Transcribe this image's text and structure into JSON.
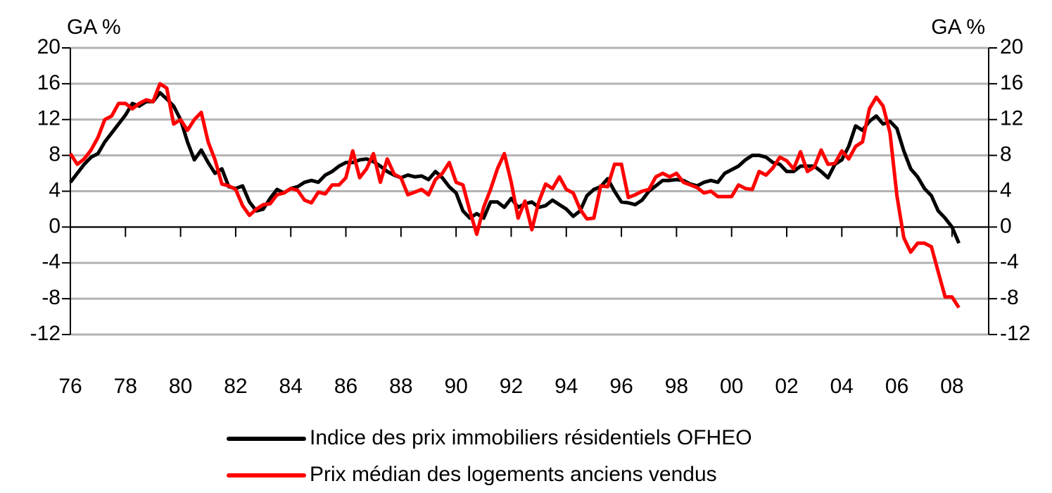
{
  "chart_data": {
    "type": "line",
    "y_label": "GA %",
    "y2_label": "GA %",
    "x": [
      1976,
      1976.25,
      1976.5,
      1976.75,
      1977,
      1977.25,
      1977.5,
      1977.75,
      1978,
      1978.25,
      1978.5,
      1978.75,
      1979,
      1979.25,
      1979.5,
      1979.75,
      1980,
      1980.25,
      1980.5,
      1980.75,
      1981,
      1981.25,
      1981.5,
      1981.75,
      1982,
      1982.25,
      1982.5,
      1982.75,
      1983,
      1983.25,
      1983.5,
      1983.75,
      1984,
      1984.25,
      1984.5,
      1984.75,
      1985,
      1985.25,
      1985.5,
      1985.75,
      1986,
      1986.25,
      1986.5,
      1986.75,
      1987,
      1987.25,
      1987.5,
      1987.75,
      1988,
      1988.25,
      1988.5,
      1988.75,
      1989,
      1989.25,
      1989.5,
      1989.75,
      1990,
      1990.25,
      1990.5,
      1990.75,
      1991,
      1991.25,
      1991.5,
      1991.75,
      1992,
      1992.25,
      1992.5,
      1992.75,
      1993,
      1993.25,
      1993.5,
      1993.75,
      1994,
      1994.25,
      1994.5,
      1994.75,
      1995,
      1995.25,
      1995.5,
      1995.75,
      1996,
      1996.25,
      1996.5,
      1996.75,
      1997,
      1997.25,
      1997.5,
      1997.75,
      1998,
      1998.25,
      1998.5,
      1998.75,
      1999,
      1999.25,
      1999.5,
      1999.75,
      2000,
      2000.25,
      2000.5,
      2000.75,
      2001,
      2001.25,
      2001.5,
      2001.75,
      2002,
      2002.25,
      2002.5,
      2002.75,
      2003,
      2003.25,
      2003.5,
      2003.75,
      2004,
      2004.25,
      2004.5,
      2004.75,
      2005,
      2005.25,
      2005.5,
      2005.75,
      2006,
      2006.25,
      2006.5,
      2006.75,
      2007,
      2007.25,
      2007.5,
      2007.75,
      2008,
      2008.25
    ],
    "series": [
      {
        "name": "Indice des prix immobiliers résidentiels OFHEO",
        "color": "#000000",
        "values": [
          5,
          6,
          7,
          7.8,
          8.2,
          9.5,
          10.5,
          11.5,
          12.5,
          13.8,
          13.5,
          14,
          14,
          15,
          14.3,
          13.5,
          12,
          9.5,
          7.5,
          8.6,
          7.2,
          6,
          6.5,
          4.5,
          4.3,
          4.6,
          2.8,
          1.8,
          2,
          3.2,
          4.2,
          3.8,
          4.3,
          4.5,
          5,
          5.2,
          5,
          5.8,
          6.2,
          6.8,
          7.2,
          7.2,
          7.5,
          7.6,
          7.3,
          6.8,
          6.2,
          5.8,
          5.5,
          5.8,
          5.6,
          5.7,
          5.3,
          6.2,
          5.5,
          4.5,
          3.8,
          1.8,
          1,
          1.5,
          1,
          2.8,
          2.8,
          2.2,
          3.2,
          2.2,
          2.6,
          2.8,
          2.2,
          2.4,
          3,
          2.5,
          2,
          1.2,
          1.8,
          3.5,
          4.2,
          4.5,
          5.4,
          4,
          2.8,
          2.7,
          2.5,
          3,
          4,
          4.6,
          5.2,
          5.2,
          5.3,
          5.2,
          4.8,
          4.6,
          5,
          5.2,
          5,
          6,
          6.4,
          6.8,
          7.5,
          8,
          8,
          7.8,
          7.2,
          7,
          6.2,
          6.2,
          6.8,
          6.8,
          6.8,
          6.2,
          5.5,
          7,
          7.5,
          9,
          11.3,
          10.8,
          11.8,
          12.4,
          11.5,
          11.8,
          11,
          8.5,
          6.5,
          5.6,
          4.3,
          3.5,
          1.8,
          1,
          0,
          -1.8
        ]
      },
      {
        "name": "Prix médian des logements anciens vendus",
        "color": "#ff0000",
        "values": [
          8.2,
          7,
          7.6,
          8.6,
          10,
          12,
          12.4,
          13.8,
          13.8,
          13.2,
          13.8,
          14.2,
          14,
          16,
          15.5,
          11.5,
          12,
          10.8,
          12,
          12.8,
          9.5,
          7.5,
          4.8,
          4.6,
          4.2,
          2.4,
          1.3,
          2,
          2.5,
          2.6,
          3.6,
          3.8,
          4.3,
          4.1,
          3,
          2.7,
          3.9,
          3.7,
          4.7,
          4.7,
          5.5,
          8.5,
          5.5,
          6.5,
          8.2,
          5,
          7.6,
          5.9,
          5.5,
          3.6,
          3.9,
          4.2,
          3.6,
          5.3,
          6,
          7.2,
          5,
          4.7,
          1.8,
          -0.8,
          2.2,
          4.2,
          6.5,
          8.2,
          5,
          1,
          2.9,
          -0.3,
          2.8,
          4.8,
          4.3,
          5.6,
          4.2,
          3.8,
          2,
          0.9,
          1,
          4.6,
          4.5,
          7,
          7,
          3.3,
          3.6,
          4,
          4.2,
          5.6,
          6,
          5.6,
          6,
          5,
          4.7,
          4.4,
          3.8,
          4,
          3.4,
          3.4,
          3.4,
          4.7,
          4.3,
          4.2,
          6.2,
          5.8,
          6.6,
          7.8,
          7.4,
          6.5,
          8.4,
          6.2,
          6.7,
          8.6,
          7,
          7.1,
          8.5,
          7.6,
          9,
          9.5,
          13.2,
          14.5,
          13.5,
          10.5,
          3.5,
          -1.2,
          -2.8,
          -1.8,
          -1.8,
          -2.2,
          -5,
          -7.8,
          -7.8,
          -9
        ]
      }
    ],
    "xlim": [
      1976,
      2009.33
    ],
    "xticks": [
      {
        "value": 1976,
        "label": "76"
      },
      {
        "value": 1978,
        "label": "78"
      },
      {
        "value": 1980,
        "label": "80"
      },
      {
        "value": 1982,
        "label": "82"
      },
      {
        "value": 1984,
        "label": "84"
      },
      {
        "value": 1986,
        "label": "86"
      },
      {
        "value": 1988,
        "label": "88"
      },
      {
        "value": 1990,
        "label": "90"
      },
      {
        "value": 1992,
        "label": "92"
      },
      {
        "value": 1994,
        "label": "94"
      },
      {
        "value": 1996,
        "label": "96"
      },
      {
        "value": 1998,
        "label": "98"
      },
      {
        "value": 2000,
        "label": "00"
      },
      {
        "value": 2002,
        "label": "02"
      },
      {
        "value": 2004,
        "label": "04"
      },
      {
        "value": 2006,
        "label": "06"
      },
      {
        "value": 2008,
        "label": "08"
      }
    ],
    "ylim": [
      -12,
      20
    ],
    "yticks": [
      20,
      16,
      12,
      8,
      4,
      0,
      -4,
      -8,
      -12
    ],
    "y2lim": [
      -12,
      20
    ],
    "y2ticks": [
      20,
      16,
      12,
      8,
      4,
      0,
      -4,
      -8,
      -12
    ],
    "grid": true
  }
}
